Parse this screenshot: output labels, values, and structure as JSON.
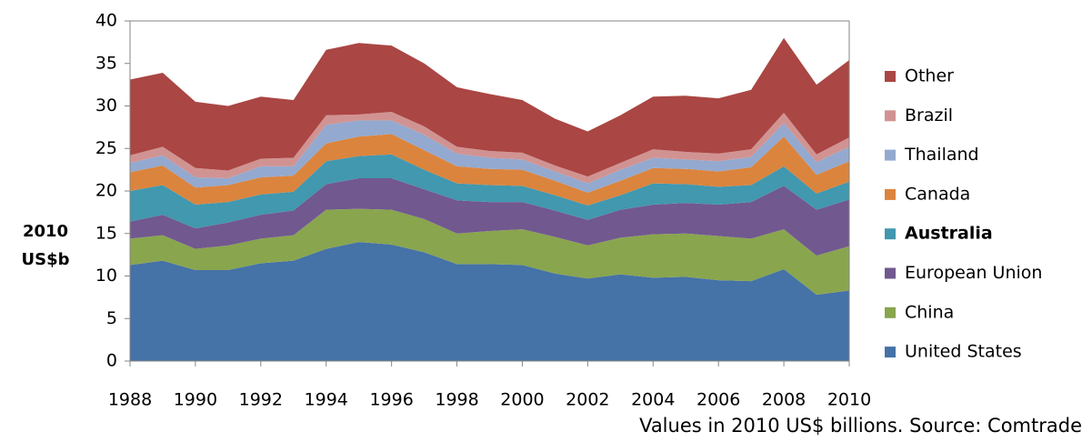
{
  "chart_data": {
    "type": "stacked_area",
    "ylabel": [
      "2010",
      "US$b"
    ],
    "note": "Values in 2010 US$ billions. Source: Comtrade",
    "x": [
      1988,
      1989,
      1990,
      1991,
      1992,
      1993,
      1994,
      1995,
      1996,
      1997,
      1998,
      1999,
      2000,
      2001,
      2002,
      2003,
      2004,
      2005,
      2006,
      2007,
      2008,
      2009,
      2010
    ],
    "xlim": [
      1988,
      2010
    ],
    "xticks": [
      1988,
      1990,
      1992,
      1994,
      1996,
      1998,
      2000,
      2002,
      2004,
      2006,
      2008,
      2010
    ],
    "ylim": [
      0,
      40
    ],
    "yticks": [
      0,
      5,
      10,
      15,
      20,
      25,
      30,
      35,
      40
    ],
    "grid": false,
    "legend": "right",
    "series": [
      {
        "name": "United States",
        "color": "#4572a7",
        "values": [
          11.3,
          11.8,
          10.7,
          10.7,
          11.5,
          11.8,
          13.2,
          14.0,
          13.7,
          12.8,
          11.4,
          11.4,
          11.3,
          10.3,
          9.7,
          10.2,
          9.8,
          9.9,
          9.5,
          9.4,
          10.8,
          7.8,
          8.3
        ]
      },
      {
        "name": "China",
        "color": "#89a54e",
        "values": [
          3.1,
          3.0,
          2.5,
          2.9,
          2.9,
          3.0,
          4.6,
          3.9,
          4.1,
          3.9,
          3.6,
          3.9,
          4.2,
          4.3,
          3.9,
          4.3,
          5.1,
          5.1,
          5.2,
          5.0,
          4.7,
          4.6,
          5.2
        ]
      },
      {
        "name": "European Union",
        "color": "#71588f",
        "values": [
          2.0,
          2.4,
          2.4,
          2.7,
          2.8,
          2.9,
          3.0,
          3.6,
          3.7,
          3.5,
          3.9,
          3.4,
          3.2,
          3.1,
          3.0,
          3.3,
          3.5,
          3.6,
          3.7,
          4.3,
          5.1,
          5.4,
          5.5
        ]
      },
      {
        "name": "Australia",
        "color": "#4198af",
        "bold": true,
        "values": [
          3.6,
          3.5,
          2.8,
          2.4,
          2.4,
          2.2,
          2.7,
          2.6,
          2.8,
          2.3,
          2.0,
          2.0,
          1.9,
          1.8,
          1.7,
          1.7,
          2.5,
          2.2,
          2.1,
          2.0,
          2.3,
          1.9,
          2.1
        ]
      },
      {
        "name": "Canada",
        "color": "#db843d",
        "values": [
          2.2,
          2.3,
          2.0,
          2.0,
          2.0,
          1.9,
          2.1,
          2.3,
          2.4,
          2.3,
          2.0,
          1.9,
          1.9,
          1.7,
          1.5,
          1.7,
          1.8,
          1.8,
          1.8,
          2.1,
          3.5,
          2.2,
          2.4
        ]
      },
      {
        "name": "Thailand",
        "color": "#93a9cf",
        "values": [
          1.1,
          1.2,
          1.2,
          0.8,
          1.3,
          1.1,
          2.2,
          1.9,
          1.6,
          1.8,
          1.5,
          1.3,
          1.2,
          1.1,
          1.1,
          1.3,
          1.2,
          1.1,
          1.2,
          1.2,
          1.6,
          1.5,
          1.7
        ]
      },
      {
        "name": "Brazil",
        "color": "#d19392",
        "values": [
          0.9,
          1.0,
          1.1,
          0.9,
          0.9,
          1.0,
          1.1,
          0.7,
          1.0,
          1.0,
          0.8,
          0.8,
          0.8,
          0.7,
          0.8,
          0.8,
          1.0,
          0.9,
          0.9,
          0.9,
          1.2,
          0.9,
          1.1
        ]
      },
      {
        "name": "Other",
        "color": "#aa4643",
        "values": [
          8.9,
          8.7,
          7.8,
          7.6,
          7.3,
          6.8,
          7.7,
          8.4,
          7.8,
          7.4,
          7.0,
          6.7,
          6.2,
          5.5,
          5.3,
          5.6,
          6.2,
          6.6,
          6.5,
          7.0,
          8.8,
          8.2,
          9.1
        ]
      }
    ]
  }
}
